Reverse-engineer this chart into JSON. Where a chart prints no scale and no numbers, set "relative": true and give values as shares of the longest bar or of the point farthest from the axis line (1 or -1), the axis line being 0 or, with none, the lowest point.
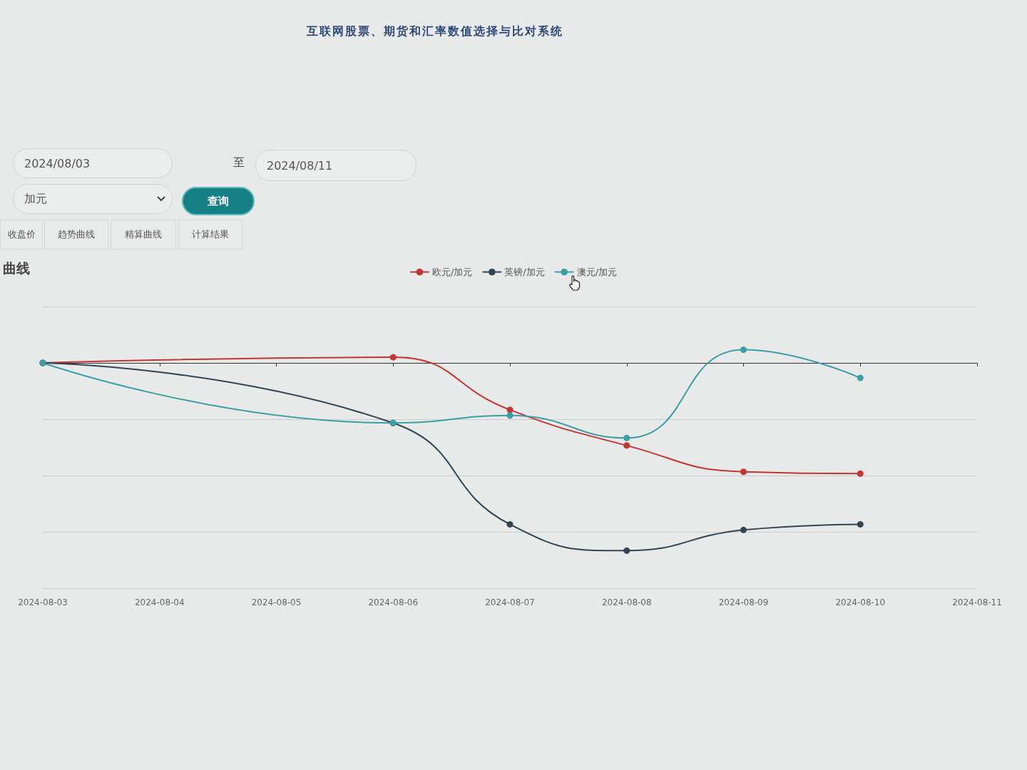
{
  "chart_data": {
    "type": "line",
    "title": "互联网股票、期货和汇率数值选择与比对系统",
    "subtitle": "曲线",
    "annotations": [
      "2024/08/03",
      "至",
      "2024/08/11",
      "加元",
      "查询",
      "收盘价",
      "趋势曲线",
      "精算曲线",
      "计算结果"
    ],
    "x": [
      "2024-08-03",
      "2024-08-06",
      "2024-08-07",
      "2024-08-08",
      "2024-08-09",
      "2024-08-10"
    ],
    "xlim": [
      "2024-08-03",
      "2024-08-11"
    ],
    "xticks": [
      "2024-08-03",
      "2024-08-04",
      "2024-08-05",
      "2024-08-06",
      "2024-08-07",
      "2024-08-08",
      "2024-08-09",
      "2024-08-10",
      "2024-08-11"
    ],
    "relative": true,
    "series": [
      {
        "name": "欧元/加元",
        "color": "#c23531",
        "values": [
          0,
          0.03,
          -0.25,
          -0.44,
          -0.58,
          -0.59
        ]
      },
      {
        "name": "英镑/加元",
        "color": "#2f4554",
        "values": [
          0,
          -0.32,
          -0.86,
          -1,
          -0.89,
          -0.86
        ]
      },
      {
        "name": "澳元/加元",
        "color": "#3a9ea5",
        "values": [
          0,
          -0.32,
          -0.28,
          -0.4,
          0.07,
          -0.08
        ]
      }
    ],
    "grid": "y",
    "legend": "top",
    "marker": "circle",
    "line_style": "solid"
  }
}
